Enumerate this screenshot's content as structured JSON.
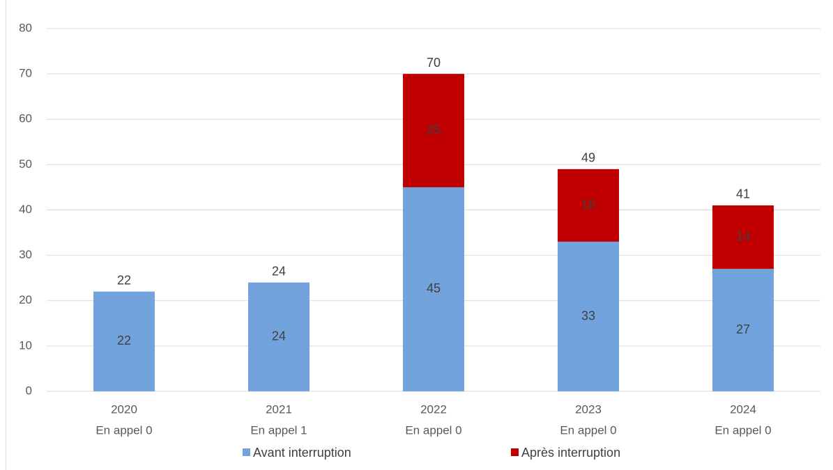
{
  "chart_data": {
    "type": "stacked_bar",
    "categories": [
      "2020",
      "2021",
      "2022",
      "2023",
      "2024"
    ],
    "category_sublabels": [
      "En appel 0",
      "En appel 1",
      "En appel 0",
      "En appel 0",
      "En appel 0"
    ],
    "series": [
      {
        "name": "Avant interruption",
        "color": "#72a3dc",
        "values": [
          22,
          24,
          45,
          33,
          27
        ]
      },
      {
        "name": "Après interruption",
        "color": "#c00000",
        "values": [
          null,
          null,
          25,
          16,
          14
        ]
      }
    ],
    "totals": [
      22,
      24,
      70,
      49,
      41
    ],
    "ylim": [
      0,
      80
    ],
    "yticks": [
      0,
      10,
      20,
      30,
      40,
      50,
      60,
      70,
      80
    ],
    "grid": true,
    "legend": "bottom"
  }
}
